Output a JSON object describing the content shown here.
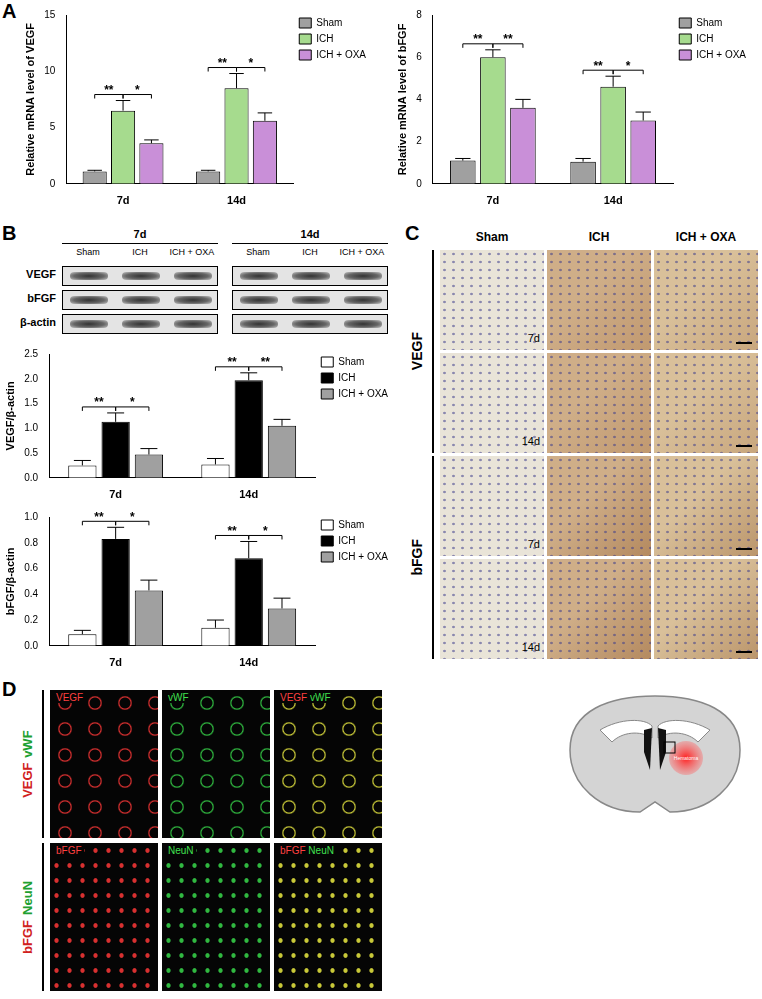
{
  "chart_data": [
    {
      "panel": "A",
      "type": "bar",
      "y_label": "Relative mRNA level of VEGF",
      "categories": [
        "7d",
        "14d"
      ],
      "series": [
        {
          "name": "Sham",
          "color": "#a0a0a0",
          "values": [
            1.1,
            1.1
          ],
          "errors": [
            0.1,
            0.1
          ]
        },
        {
          "name": "ICH",
          "color": "#a6db8e",
          "values": [
            6.5,
            8.5
          ],
          "errors": [
            0.9,
            1.3
          ]
        },
        {
          "name": "ICH + OXA",
          "color": "#c98fd8",
          "values": [
            3.6,
            5.6
          ],
          "errors": [
            0.3,
            0.7
          ]
        }
      ],
      "ylim": [
        0,
        15
      ],
      "yticks": [
        0,
        5,
        10,
        15
      ],
      "grid": false,
      "legend": "upper right",
      "significance": [
        {
          "category": "7d",
          "between": [
            "Sham",
            "ICH"
          ],
          "label": "**"
        },
        {
          "category": "7d",
          "between": [
            "ICH",
            "ICH + OXA"
          ],
          "label": "*"
        },
        {
          "category": "14d",
          "between": [
            "Sham",
            "ICH"
          ],
          "label": "**"
        },
        {
          "category": "14d",
          "between": [
            "ICH",
            "ICH + OXA"
          ],
          "label": "*"
        }
      ]
    },
    {
      "type": "bar",
      "y_label": "Relative mRNA level of bFGF",
      "categories": [
        "7d",
        "14d"
      ],
      "series": [
        {
          "name": "Sham",
          "color": "#a0a0a0",
          "values": [
            1.1,
            1.05
          ],
          "errors": [
            0.1,
            0.15
          ]
        },
        {
          "name": "ICH",
          "color": "#a6db8e",
          "values": [
            6.0,
            4.6
          ],
          "errors": [
            0.35,
            0.5
          ]
        },
        {
          "name": "ICH + OXA",
          "color": "#c98fd8",
          "values": [
            3.6,
            3.0
          ],
          "errors": [
            0.4,
            0.4
          ]
        }
      ],
      "ylim": [
        0,
        8
      ],
      "yticks": [
        0,
        2,
        4,
        6,
        8
      ],
      "grid": false,
      "legend": "upper right",
      "significance": [
        {
          "category": "7d",
          "between": [
            "Sham",
            "ICH"
          ],
          "label": "**"
        },
        {
          "category": "7d",
          "between": [
            "ICH",
            "ICH + OXA"
          ],
          "label": "**"
        },
        {
          "category": "14d",
          "between": [
            "Sham",
            "ICH"
          ],
          "label": "**"
        },
        {
          "category": "14d",
          "between": [
            "ICH",
            "ICH + OXA"
          ],
          "label": "*"
        }
      ]
    },
    {
      "type": "bar",
      "y_label": "VEGF/β-actin",
      "categories": [
        "7d",
        "14d"
      ],
      "series": [
        {
          "name": "Sham",
          "color": "#ffffff",
          "values": [
            0.25,
            0.27
          ],
          "errors": [
            0.1,
            0.12
          ]
        },
        {
          "name": "ICH",
          "color": "#000000",
          "values": [
            1.13,
            1.97
          ],
          "errors": [
            0.18,
            0.15
          ]
        },
        {
          "name": "ICH + OXA",
          "color": "#a0a0a0",
          "values": [
            0.47,
            1.05
          ],
          "errors": [
            0.12,
            0.13
          ]
        }
      ],
      "ylim": [
        0,
        2.5
      ],
      "yticks": [
        {
          "value": 0,
          "label": "0.0"
        },
        0.5,
        {
          "value": 1,
          "label": "1.0"
        },
        1.5,
        {
          "value": 2,
          "label": "2.0"
        },
        2.5
      ],
      "grid": false,
      "legend": "upper right",
      "significance": [
        {
          "category": "7d",
          "between": [
            "Sham",
            "ICH"
          ],
          "label": "**"
        },
        {
          "category": "7d",
          "between": [
            "ICH",
            "ICH + OXA"
          ],
          "label": "*"
        },
        {
          "category": "14d",
          "between": [
            "Sham",
            "ICH"
          ],
          "label": "**"
        },
        {
          "category": "14d",
          "between": [
            "ICH",
            "ICH + OXA"
          ],
          "label": "**"
        }
      ]
    },
    {
      "type": "bar",
      "y_label": "bFGF/β-actin",
      "categories": [
        "7d",
        "14d"
      ],
      "series": [
        {
          "name": "Sham",
          "color": "#ffffff",
          "values": [
            0.09,
            0.14
          ],
          "errors": [
            0.03,
            0.06
          ]
        },
        {
          "name": "ICH",
          "color": "#000000",
          "values": [
            0.83,
            0.68
          ],
          "errors": [
            0.09,
            0.13
          ]
        },
        {
          "name": "ICH + OXA",
          "color": "#a0a0a0",
          "values": [
            0.43,
            0.29
          ],
          "errors": [
            0.08,
            0.08
          ]
        }
      ],
      "ylim": [
        0,
        1
      ],
      "yticks": [
        {
          "value": 0,
          "label": "0.0"
        },
        0.2,
        0.4,
        0.6,
        0.8,
        {
          "value": 1,
          "label": "1.0"
        }
      ],
      "grid": false,
      "legend": "upper right",
      "significance": [
        {
          "category": "7d",
          "between": [
            "Sham",
            "ICH"
          ],
          "label": "**"
        },
        {
          "category": "7d",
          "between": [
            "ICH",
            "ICH + OXA"
          ],
          "label": "*"
        },
        {
          "category": "14d",
          "between": [
            "Sham",
            "ICH"
          ],
          "label": "**"
        },
        {
          "category": "14d",
          "between": [
            "ICH",
            "ICH + OXA"
          ],
          "label": "*"
        }
      ]
    }
  ],
  "blot": {
    "panel": "B",
    "times": [
      "7d",
      "14d"
    ],
    "groups": [
      "Sham",
      "ICH",
      "ICH + OXA"
    ],
    "rows": [
      "VEGF",
      "bFGF",
      "β-actin"
    ]
  },
  "ihc": {
    "panel": "C",
    "columns": [
      "Sham",
      "ICH",
      "ICH + OXA"
    ],
    "rows": [
      {
        "marker": "VEGF",
        "times": [
          "7d",
          "14d"
        ]
      },
      {
        "marker": "bFGF",
        "times": [
          "7d",
          "14d"
        ]
      }
    ]
  },
  "fluorescence": {
    "panel": "D",
    "rows": [
      {
        "red": "VEGF",
        "green": "vWF"
      },
      {
        "red": "bFGF",
        "green": "NeuN"
      }
    ],
    "diagram_label": "Hematoma"
  }
}
